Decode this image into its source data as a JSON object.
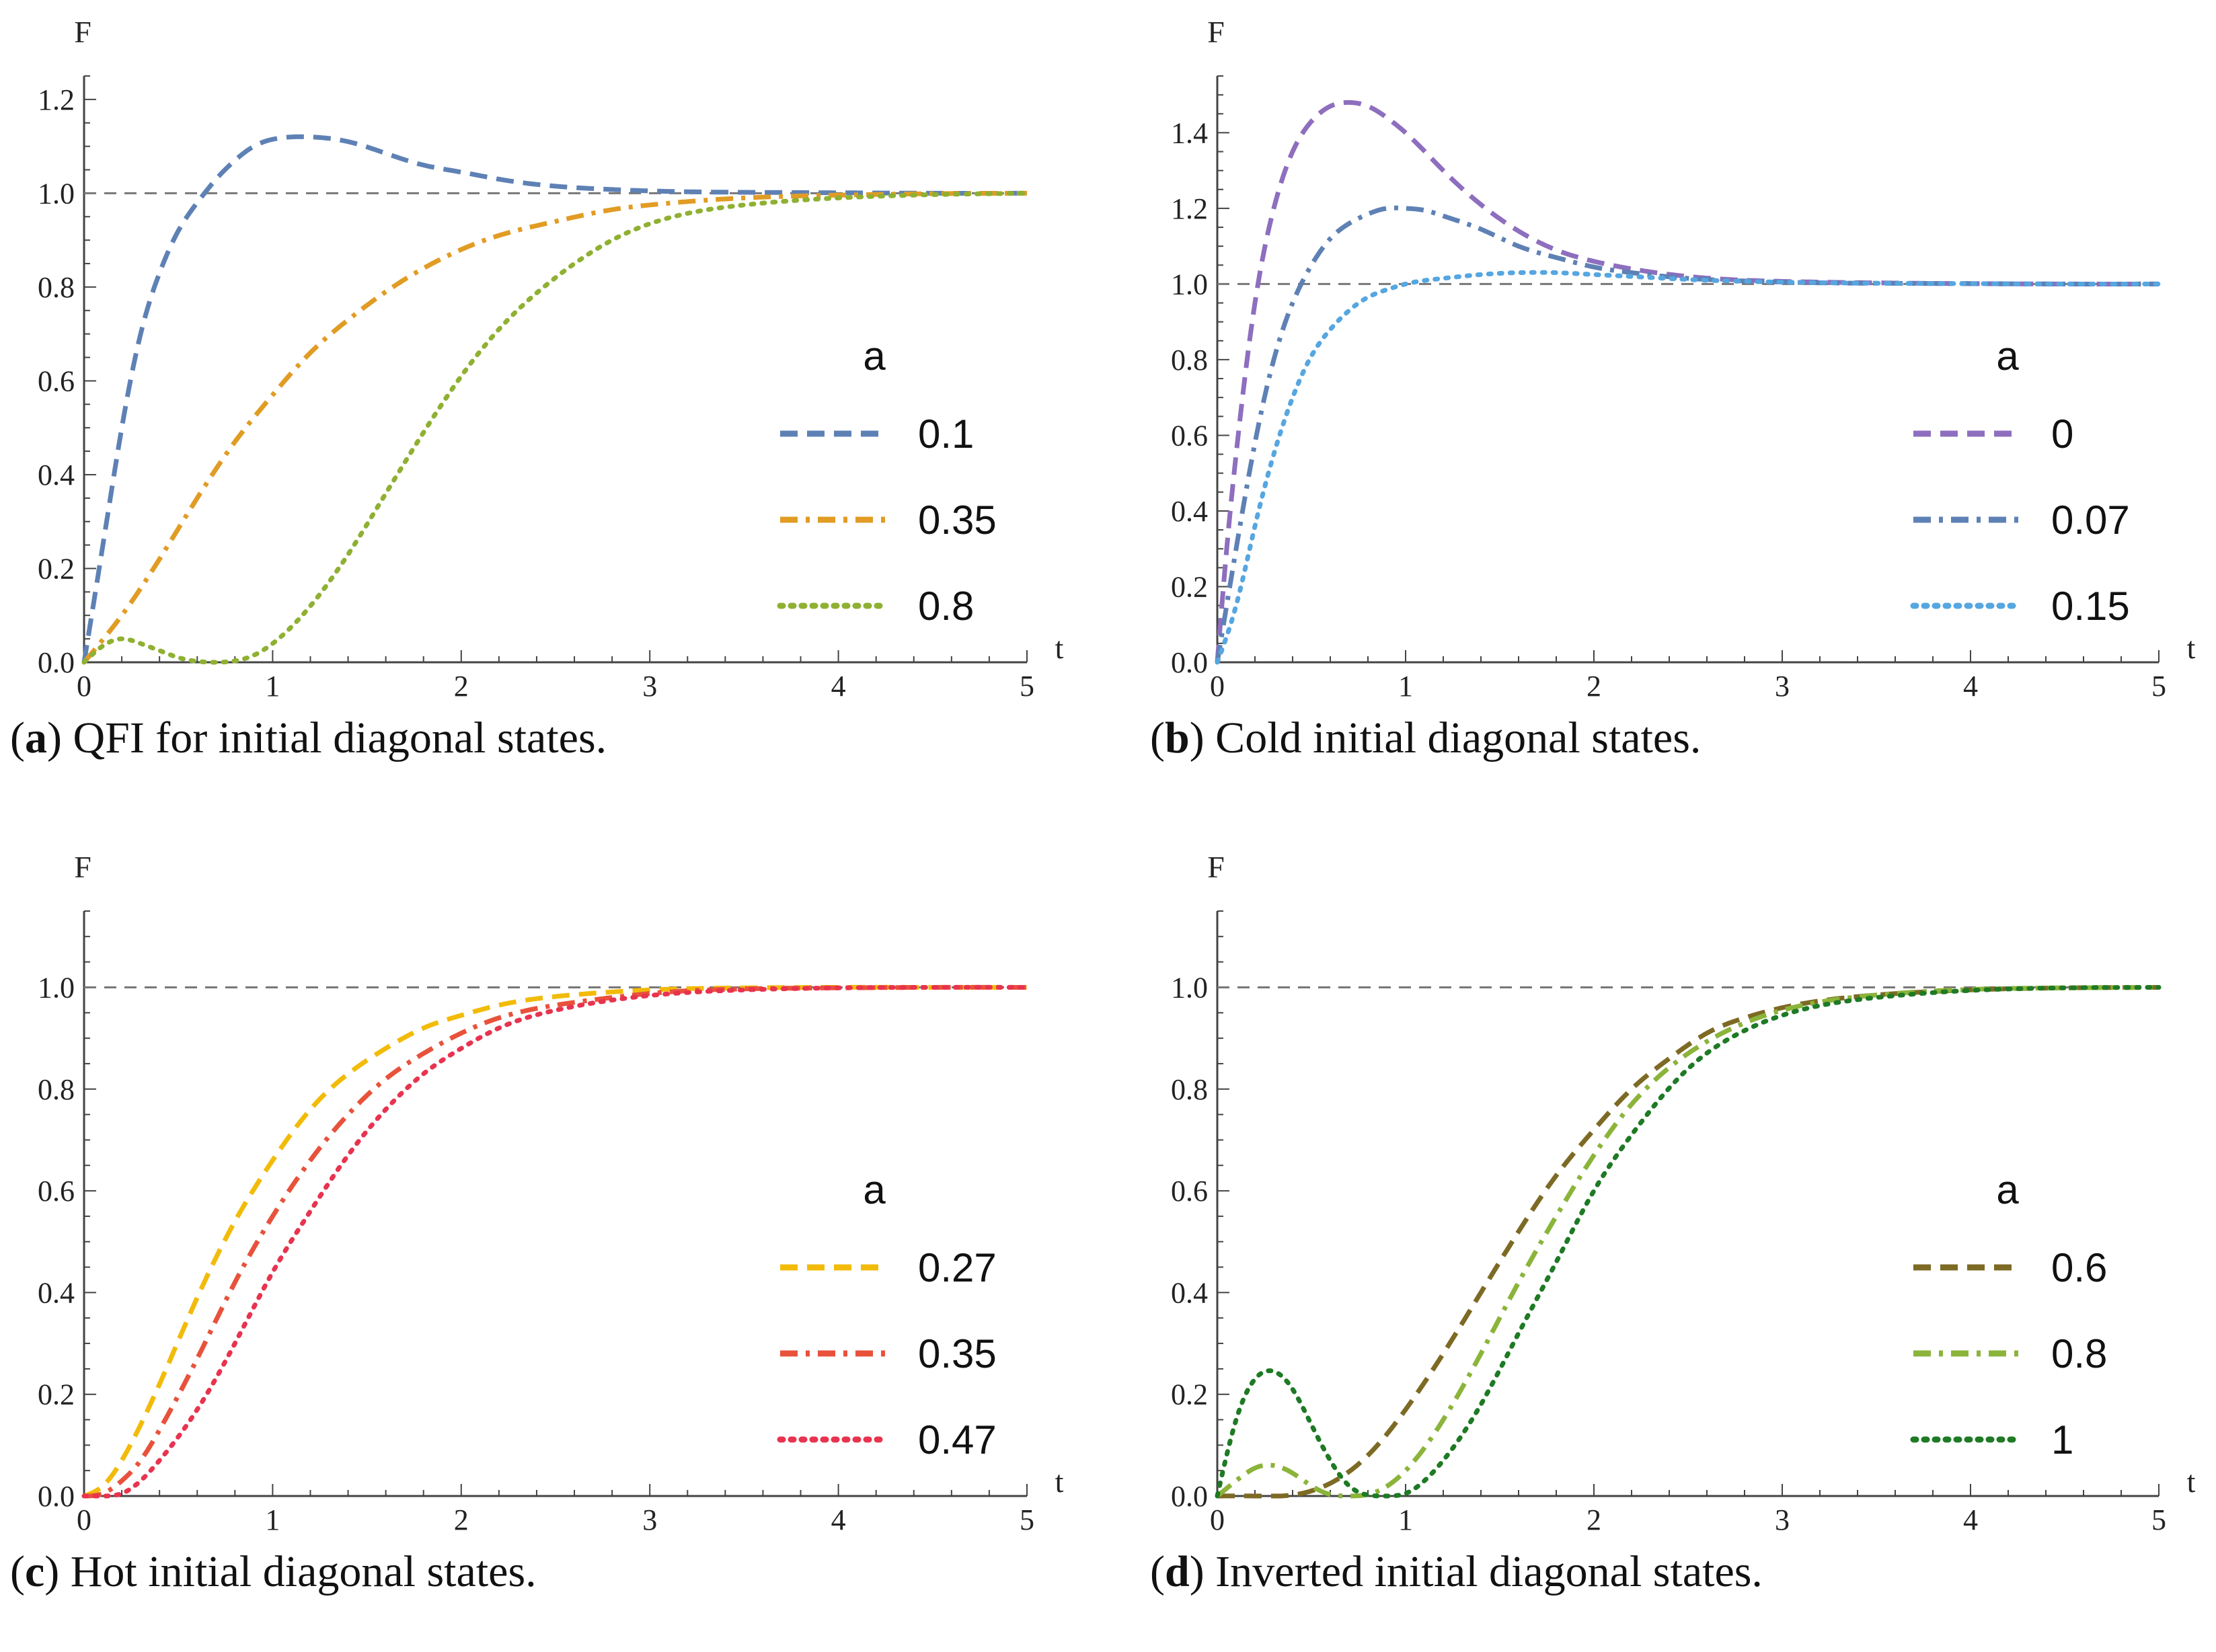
{
  "figure": {
    "panels": [
      {
        "letter": "a",
        "caption": "QFI for initial diagonal states.",
        "chart_data": {
          "type": "line",
          "xlabel": "t",
          "ylabel": "F",
          "xlim": [
            0,
            5
          ],
          "ylim": [
            0,
            1.25
          ],
          "xticks": [
            0,
            1,
            2,
            3,
            4,
            5
          ],
          "yticks": [
            0.0,
            0.2,
            0.4,
            0.6,
            0.8,
            1.0,
            1.2
          ],
          "reference_line": 1.0,
          "legend_title": "a",
          "legend_position": "center-right",
          "series": [
            {
              "name": "0.1",
              "style": "dashed",
              "color": "#5E81B5",
              "x": [
                0,
                0.1,
                0.2,
                0.3,
                0.4,
                0.5,
                0.6,
                0.7,
                0.8,
                0.9,
                1.0,
                1.1,
                1.2,
                1.4,
                1.6,
                1.8,
                2.0,
                2.2,
                2.5,
                2.8,
                3.0,
                3.5,
                4.0,
                4.5,
                5.0
              ],
              "y": [
                0,
                0.25,
                0.5,
                0.7,
                0.83,
                0.92,
                0.98,
                1.03,
                1.07,
                1.1,
                1.115,
                1.12,
                1.12,
                1.11,
                1.085,
                1.06,
                1.045,
                1.03,
                1.015,
                1.008,
                1.005,
                1.002,
                1.001,
                1.0,
                1.0
              ]
            },
            {
              "name": "0.35",
              "style": "dashdot",
              "color": "#E19C24",
              "x": [
                0,
                0.2,
                0.4,
                0.6,
                0.8,
                1.0,
                1.2,
                1.4,
                1.6,
                1.8,
                2.0,
                2.2,
                2.5,
                2.8,
                3.0,
                3.5,
                4.0,
                4.5,
                5.0
              ],
              "y": [
                0,
                0.1,
                0.22,
                0.35,
                0.47,
                0.57,
                0.66,
                0.73,
                0.79,
                0.84,
                0.88,
                0.91,
                0.94,
                0.965,
                0.975,
                0.99,
                0.996,
                0.999,
                1.0
              ]
            },
            {
              "name": "0.8",
              "style": "dotted",
              "color": "#8FB032",
              "x": [
                0,
                0.1,
                0.2,
                0.3,
                0.4,
                0.5,
                0.6,
                0.7,
                0.8,
                0.9,
                1.0,
                1.2,
                1.4,
                1.6,
                1.8,
                2.0,
                2.2,
                2.5,
                2.8,
                3.0,
                3.5,
                4.0,
                4.5,
                5.0
              ],
              "y": [
                0,
                0.035,
                0.05,
                0.04,
                0.025,
                0.01,
                0.002,
                0,
                0.003,
                0.015,
                0.04,
                0.12,
                0.23,
                0.36,
                0.49,
                0.61,
                0.71,
                0.82,
                0.9,
                0.935,
                0.975,
                0.99,
                0.997,
                1.0
              ]
            }
          ]
        }
      },
      {
        "letter": "b",
        "caption": "Cold initial diagonal states.",
        "chart_data": {
          "type": "line",
          "xlabel": "t",
          "ylabel": "F",
          "xlim": [
            0,
            5
          ],
          "ylim": [
            0,
            1.55
          ],
          "xticks": [
            0,
            1,
            2,
            3,
            4,
            5
          ],
          "yticks": [
            0.0,
            0.2,
            0.4,
            0.6,
            0.8,
            1.0,
            1.2,
            1.4
          ],
          "reference_line": 1.0,
          "legend_title": "a",
          "legend_position": "center-right",
          "series": [
            {
              "name": "0",
              "style": "dashed",
              "color": "#8E6EBE",
              "x": [
                0,
                0.05,
                0.1,
                0.2,
                0.3,
                0.4,
                0.5,
                0.6,
                0.7,
                0.8,
                0.9,
                1.0,
                1.2,
                1.4,
                1.6,
                1.8,
                2.0,
                2.2,
                2.5,
                2.8,
                3.0,
                3.5,
                4.0,
                4.5,
                5.0
              ],
              "y": [
                0,
                0.3,
                0.55,
                0.95,
                1.2,
                1.35,
                1.43,
                1.47,
                1.48,
                1.47,
                1.44,
                1.4,
                1.3,
                1.21,
                1.14,
                1.09,
                1.06,
                1.04,
                1.02,
                1.01,
                1.007,
                1.003,
                1.001,
                1.0,
                1.0
              ]
            },
            {
              "name": "0.07",
              "style": "dashdot",
              "color": "#5E81B5",
              "x": [
                0,
                0.1,
                0.2,
                0.3,
                0.4,
                0.5,
                0.6,
                0.7,
                0.8,
                0.9,
                1.0,
                1.1,
                1.2,
                1.4,
                1.6,
                1.8,
                2.0,
                2.2,
                2.5,
                2.8,
                3.0,
                3.5,
                4.0,
                4.5,
                5.0
              ],
              "y": [
                0,
                0.3,
                0.58,
                0.8,
                0.95,
                1.05,
                1.12,
                1.16,
                1.185,
                1.2,
                1.2,
                1.195,
                1.18,
                1.145,
                1.1,
                1.07,
                1.045,
                1.03,
                1.015,
                1.008,
                1.005,
                1.002,
                1.001,
                1.0,
                1.0
              ]
            },
            {
              "name": "0.15",
              "style": "dotted",
              "color": "#56A6E0",
              "x": [
                0,
                0.1,
                0.2,
                0.3,
                0.4,
                0.5,
                0.6,
                0.7,
                0.8,
                0.9,
                1.0,
                1.2,
                1.4,
                1.6,
                1.8,
                2.0,
                2.2,
                2.5,
                2.8,
                3.0,
                3.5,
                4.0,
                4.5,
                5.0
              ],
              "y": [
                0,
                0.15,
                0.36,
                0.55,
                0.7,
                0.81,
                0.88,
                0.93,
                0.965,
                0.985,
                1.0,
                1.015,
                1.025,
                1.03,
                1.03,
                1.025,
                1.02,
                1.012,
                1.007,
                1.005,
                1.002,
                1.001,
                1.0,
                1.0
              ]
            }
          ]
        }
      },
      {
        "letter": "c",
        "caption": "Hot initial diagonal states.",
        "chart_data": {
          "type": "line",
          "xlabel": "t",
          "ylabel": "F",
          "xlim": [
            0,
            5
          ],
          "ylim": [
            0,
            1.15
          ],
          "xticks": [
            0,
            1,
            2,
            3,
            4,
            5
          ],
          "yticks": [
            0.0,
            0.2,
            0.4,
            0.6,
            0.8,
            1.0
          ],
          "reference_line": 1.0,
          "legend_title": "a",
          "legend_position": "center-right",
          "series": [
            {
              "name": "0.27",
              "style": "dashed",
              "color": "#F2BB0A",
              "x": [
                0,
                0.1,
                0.2,
                0.3,
                0.4,
                0.6,
                0.8,
                1.0,
                1.2,
                1.4,
                1.6,
                1.8,
                2.0,
                2.2,
                2.5,
                2.8,
                3.0,
                3.5,
                4.0,
                4.5,
                5.0
              ],
              "y": [
                0,
                0.02,
                0.07,
                0.14,
                0.22,
                0.39,
                0.54,
                0.66,
                0.76,
                0.83,
                0.88,
                0.92,
                0.945,
                0.965,
                0.982,
                0.991,
                0.995,
                0.999,
                1.0,
                1.0,
                1.0
              ]
            },
            {
              "name": "0.35",
              "style": "dashdot",
              "color": "#E8523B",
              "x": [
                0,
                0.1,
                0.2,
                0.3,
                0.4,
                0.6,
                0.8,
                1.0,
                1.2,
                1.4,
                1.6,
                1.8,
                2.0,
                2.2,
                2.5,
                2.8,
                3.0,
                3.5,
                4.0,
                4.5,
                5.0
              ],
              "y": [
                0,
                0.005,
                0.03,
                0.07,
                0.13,
                0.27,
                0.42,
                0.55,
                0.66,
                0.75,
                0.82,
                0.87,
                0.91,
                0.94,
                0.965,
                0.98,
                0.988,
                0.997,
                0.999,
                1.0,
                1.0
              ]
            },
            {
              "name": "0.47",
              "style": "dotted",
              "color": "#E8334F",
              "x": [
                0,
                0.1,
                0.2,
                0.3,
                0.4,
                0.6,
                0.8,
                1.0,
                1.2,
                1.4,
                1.6,
                1.8,
                2.0,
                2.2,
                2.5,
                2.8,
                3.0,
                3.5,
                4.0,
                4.5,
                5.0
              ],
              "y": [
                0,
                0,
                0.005,
                0.03,
                0.07,
                0.17,
                0.3,
                0.44,
                0.56,
                0.67,
                0.76,
                0.83,
                0.88,
                0.92,
                0.955,
                0.975,
                0.984,
                0.995,
                0.999,
                1.0,
                1.0
              ]
            }
          ]
        }
      },
      {
        "letter": "d",
        "caption": "Inverted initial diagonal states.",
        "chart_data": {
          "type": "line",
          "xlabel": "t",
          "ylabel": "F",
          "xlim": [
            0,
            5
          ],
          "ylim": [
            0,
            1.15
          ],
          "xticks": [
            0,
            1,
            2,
            3,
            4,
            5
          ],
          "yticks": [
            0.0,
            0.2,
            0.4,
            0.6,
            0.8,
            1.0
          ],
          "reference_line": 1.0,
          "legend_title": "a",
          "legend_position": "center-right",
          "series": [
            {
              "name": "0.6",
              "style": "dashed",
              "color": "#7D6A24",
              "x": [
                0,
                0.2,
                0.4,
                0.5,
                0.6,
                0.8,
                1.0,
                1.2,
                1.4,
                1.6,
                1.8,
                2.0,
                2.2,
                2.4,
                2.6,
                2.8,
                3.0,
                3.5,
                4.0,
                4.5,
                5.0
              ],
              "y": [
                0,
                0,
                0.002,
                0.01,
                0.025,
                0.08,
                0.17,
                0.28,
                0.4,
                0.52,
                0.63,
                0.72,
                0.8,
                0.86,
                0.91,
                0.94,
                0.96,
                0.985,
                0.995,
                0.999,
                1.0
              ]
            },
            {
              "name": "0.8",
              "style": "dashdot",
              "color": "#8BB43A",
              "x": [
                0,
                0.1,
                0.2,
                0.3,
                0.4,
                0.5,
                0.6,
                0.7,
                0.8,
                1.0,
                1.2,
                1.4,
                1.6,
                1.8,
                2.0,
                2.2,
                2.5,
                2.8,
                3.0,
                3.5,
                4.0,
                4.5,
                5.0
              ],
              "y": [
                0,
                0.03,
                0.055,
                0.06,
                0.045,
                0.02,
                0.003,
                0,
                0.003,
                0.05,
                0.15,
                0.28,
                0.42,
                0.55,
                0.67,
                0.77,
                0.87,
                0.93,
                0.955,
                0.985,
                0.996,
                0.999,
                1.0
              ]
            },
            {
              "name": "1",
              "style": "dotted",
              "color": "#1E7A24",
              "x": [
                0,
                0.1,
                0.2,
                0.3,
                0.4,
                0.5,
                0.6,
                0.7,
                0.8,
                0.9,
                1.0,
                1.1,
                1.2,
                1.4,
                1.6,
                1.8,
                2.0,
                2.2,
                2.5,
                2.8,
                3.0,
                3.5,
                4.0,
                4.5,
                5.0
              ],
              "y": [
                0,
                0.15,
                0.23,
                0.245,
                0.21,
                0.14,
                0.07,
                0.02,
                0.002,
                0,
                0.005,
                0.03,
                0.07,
                0.18,
                0.32,
                0.46,
                0.6,
                0.71,
                0.84,
                0.915,
                0.945,
                0.98,
                0.994,
                0.999,
                1.0
              ]
            }
          ]
        }
      }
    ]
  }
}
